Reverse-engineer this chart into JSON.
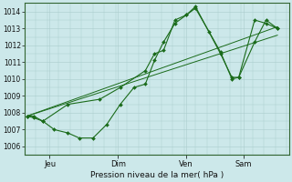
{
  "bg_color": "#cce8ea",
  "grid_color": "#aacccc",
  "line_color": "#1a6b1a",
  "marker_color": "#1a6b1a",
  "xlabel": "Pression niveau de la mer( hPa )",
  "ylim": [
    1005.5,
    1014.5
  ],
  "yticks": [
    1006,
    1007,
    1008,
    1009,
    1010,
    1011,
    1012,
    1013,
    1014
  ],
  "xtick_labels": [
    "Jeu",
    "Dim",
    "Ven",
    "Sam"
  ],
  "xtick_positions": [
    1,
    4,
    7,
    9.5
  ],
  "xlim": [
    -0.1,
    11.5
  ],
  "series1": [
    [
      0.0,
      1007.8
    ],
    [
      0.3,
      1007.8
    ],
    [
      0.7,
      1007.5
    ],
    [
      1.2,
      1007.0
    ],
    [
      1.8,
      1006.8
    ],
    [
      2.3,
      1006.5
    ],
    [
      2.9,
      1006.5
    ],
    [
      3.5,
      1007.3
    ],
    [
      4.1,
      1008.5
    ],
    [
      4.7,
      1009.5
    ],
    [
      5.2,
      1009.7
    ],
    [
      5.6,
      1011.1
    ],
    [
      6.0,
      1012.2
    ],
    [
      6.5,
      1013.3
    ],
    [
      7.0,
      1013.8
    ],
    [
      7.4,
      1014.2
    ],
    [
      8.0,
      1012.8
    ],
    [
      8.5,
      1011.6
    ],
    [
      9.0,
      1010.0
    ],
    [
      9.3,
      1010.1
    ],
    [
      10.0,
      1013.5
    ],
    [
      10.5,
      1013.3
    ],
    [
      11.0,
      1013.0
    ]
  ],
  "series2": [
    [
      0.0,
      1007.8
    ],
    [
      0.3,
      1007.7
    ],
    [
      0.7,
      1007.5
    ],
    [
      1.8,
      1008.5
    ],
    [
      3.2,
      1008.8
    ],
    [
      4.1,
      1009.5
    ],
    [
      5.2,
      1010.5
    ],
    [
      5.6,
      1011.5
    ],
    [
      6.0,
      1011.7
    ],
    [
      6.5,
      1013.5
    ],
    [
      7.0,
      1013.8
    ],
    [
      7.4,
      1014.3
    ],
    [
      8.5,
      1011.5
    ],
    [
      9.0,
      1010.1
    ],
    [
      9.3,
      1010.1
    ],
    [
      10.0,
      1012.2
    ],
    [
      10.5,
      1013.5
    ],
    [
      11.0,
      1013.0
    ]
  ],
  "series3_linear": [
    [
      0.0,
      1007.8
    ],
    [
      11.0,
      1013.1
    ]
  ],
  "series4_linear2": [
    [
      0.0,
      1007.8
    ],
    [
      11.0,
      1012.6
    ]
  ]
}
